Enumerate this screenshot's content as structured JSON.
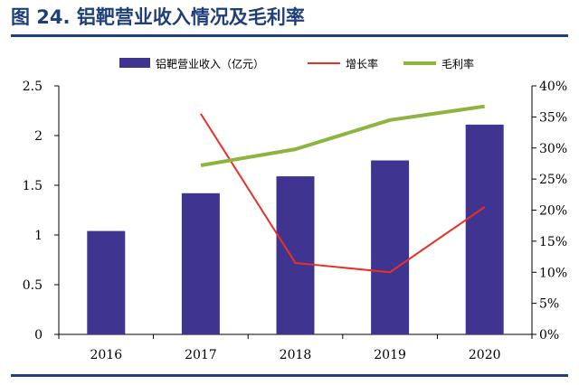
{
  "header": {
    "title": "图 24. 铝靶营业收入情况及毛利率"
  },
  "chart_data": {
    "type": "bar",
    "categories": [
      "2016",
      "2017",
      "2018",
      "2019",
      "2020"
    ],
    "series": [
      {
        "name": "铝靶营业收入（亿元）",
        "type": "bar",
        "axis": "left",
        "values": [
          1.04,
          1.42,
          1.59,
          1.75,
          2.11
        ],
        "color": "#3f3591"
      },
      {
        "name": "增长率",
        "type": "line",
        "axis": "right",
        "values": [
          null,
          0.355,
          0.115,
          0.1,
          0.205
        ],
        "color": "#e8302a"
      },
      {
        "name": "毛利率",
        "type": "line",
        "axis": "right",
        "values": [
          null,
          0.272,
          0.298,
          0.345,
          0.367
        ],
        "color": "#8db43c"
      }
    ],
    "ylim_left": [
      0,
      2.5
    ],
    "yticks_left": [
      "0",
      "0.5",
      "1",
      "1.5",
      "2",
      "2.5"
    ],
    "ylim_right": [
      0,
      0.4
    ],
    "yticks_right": [
      "0%",
      "5%",
      "10%",
      "15%",
      "20%",
      "25%",
      "30%",
      "35%",
      "40%"
    ],
    "legend_position": "top",
    "grid": false
  }
}
